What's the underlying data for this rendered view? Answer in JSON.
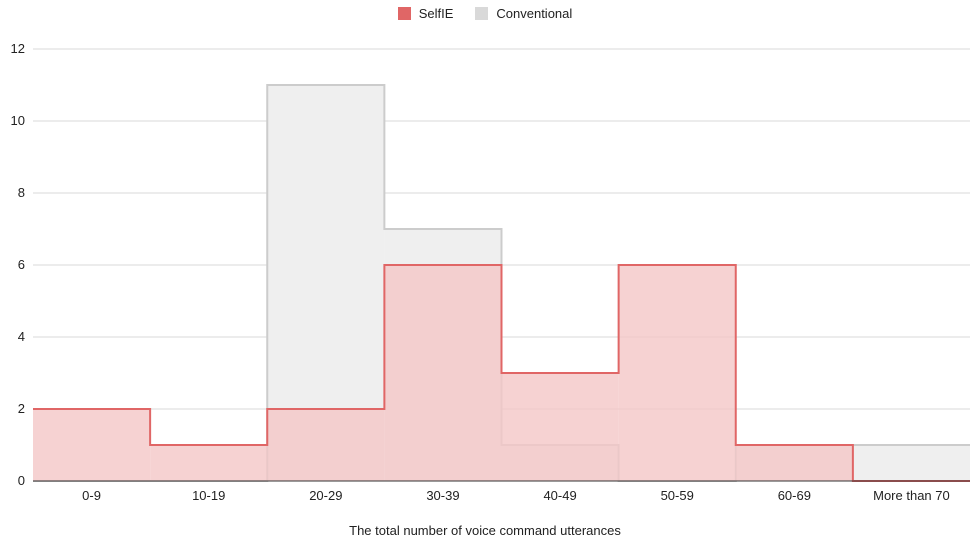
{
  "chart_data": {
    "type": "area",
    "subtype": "step-histogram",
    "title": "",
    "xlabel": "The total number of voice command utterances",
    "ylabel": "",
    "categories": [
      "0-9",
      "10-19",
      "20-29",
      "30-39",
      "40-49",
      "50-59",
      "60-69",
      "More than 70"
    ],
    "ylim": [
      0,
      12
    ],
    "yticks": [
      0,
      2,
      4,
      6,
      8,
      10,
      12
    ],
    "grid": true,
    "legend_position": "top-center",
    "series": [
      {
        "name": "SelfIE",
        "values": [
          2,
          1,
          2,
          6,
          3,
          6,
          1,
          0
        ],
        "line_color": "#e06666",
        "fill_color": "#f4c7c7"
      },
      {
        "name": "Conventional",
        "values": [
          0,
          0,
          11,
          7,
          1,
          0,
          1,
          1
        ],
        "line_color": "#cccccc",
        "fill_color": "#efefef"
      }
    ]
  }
}
